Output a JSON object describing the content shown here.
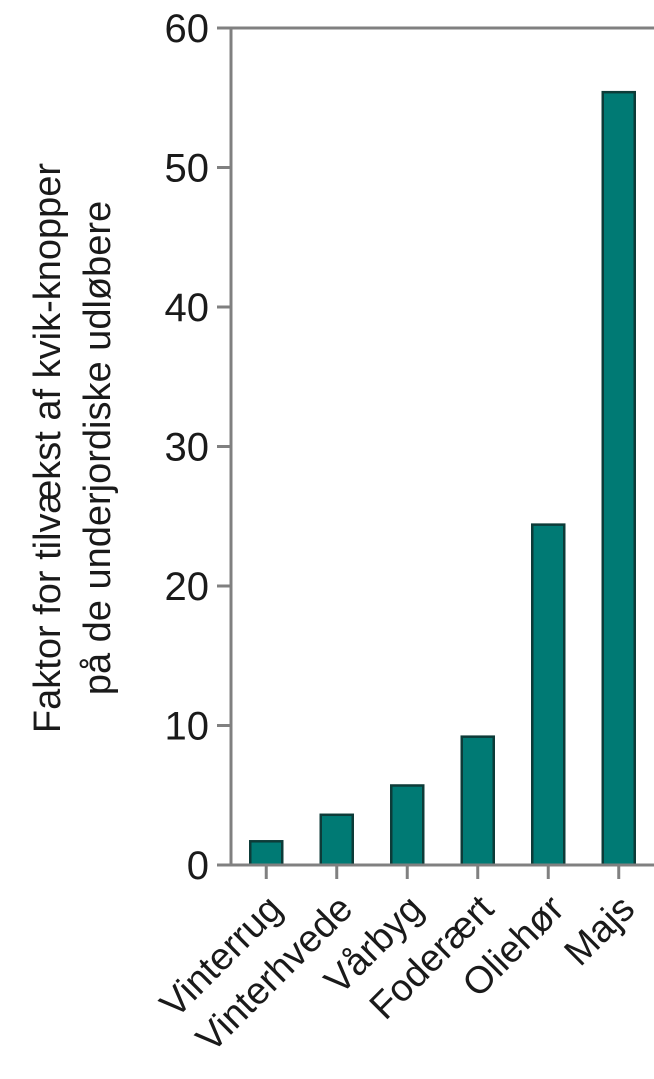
{
  "chart_data": {
    "type": "bar",
    "categories": [
      "Vinterrug",
      "Vinterhvede",
      "Vårbyg",
      "Foderært",
      "Oliehør",
      "Majs"
    ],
    "values": [
      1.7,
      3.6,
      5.7,
      9.2,
      24.4,
      55.4
    ],
    "title": "",
    "xlabel": "",
    "ylabel_lines": [
      "Faktor for tilvækst af kvik-knopper",
      "på de underjordiske udløbere"
    ],
    "ylim": [
      0,
      60
    ],
    "yticks": [
      0,
      10,
      20,
      30,
      40,
      50,
      60
    ],
    "grid": false,
    "legend": "none",
    "bar_color": "#007a74",
    "bar_edge_color": "#0d3b38"
  }
}
